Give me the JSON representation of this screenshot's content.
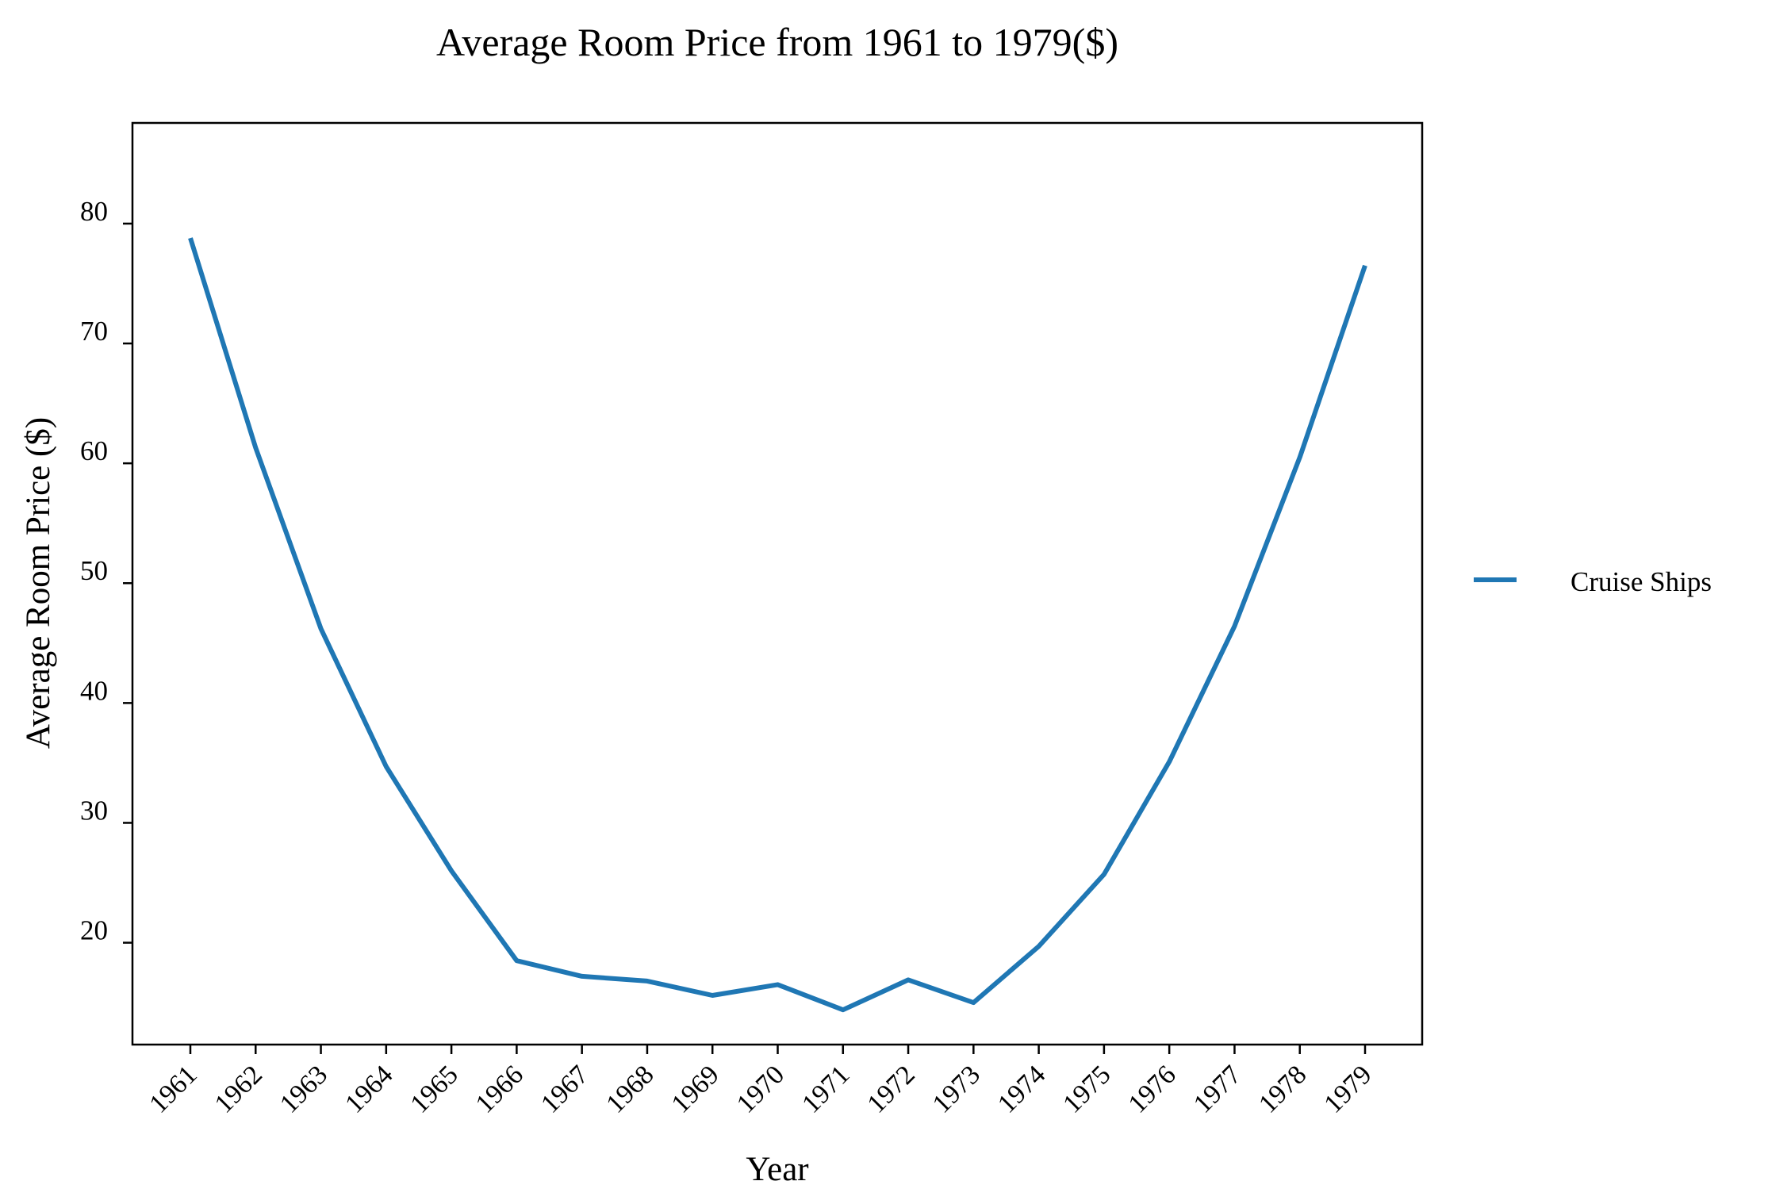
{
  "chart_data": {
    "type": "line",
    "title": "Average Room Price from 1961 to 1979($)",
    "xlabel": "Year",
    "ylabel": "Average Room Price ($)",
    "categories": [
      "1961",
      "1962",
      "1963",
      "1964",
      "1965",
      "1966",
      "1967",
      "1968",
      "1969",
      "1970",
      "1971",
      "1972",
      "1973",
      "1974",
      "1975",
      "1976",
      "1977",
      "1978",
      "1979"
    ],
    "series": [
      {
        "name": "Cruise Ships",
        "color": "#1f77b4",
        "values": [
          78.8,
          61.3,
          46.2,
          34.7,
          26.0,
          18.5,
          17.2,
          16.8,
          15.6,
          16.5,
          14.4,
          16.9,
          15.0,
          19.7,
          25.7,
          35.1,
          46.4,
          60.5,
          76.5
        ]
      }
    ],
    "yticks": [
      20,
      30,
      40,
      50,
      60,
      70,
      80
    ],
    "ylim": [
      11.5,
      88.4
    ],
    "grid": false,
    "legend_position": "right"
  }
}
